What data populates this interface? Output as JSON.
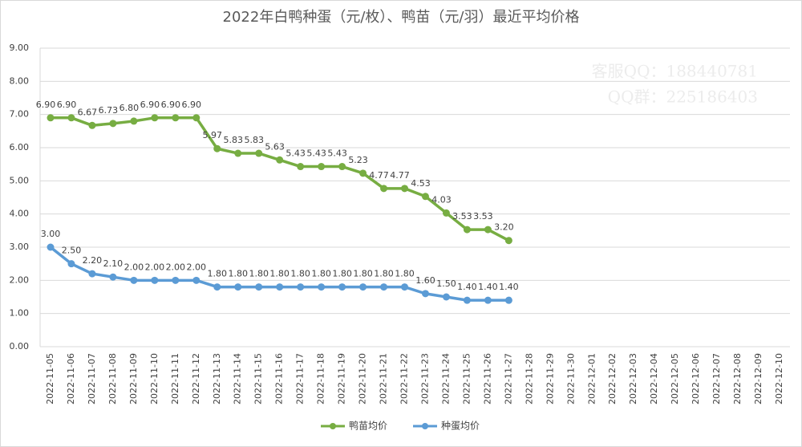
{
  "chart_data": {
    "type": "line",
    "title": "2022年白鸭种蛋（元/枚）、鸭苗（元/羽）最近平均价格",
    "annotations": [
      "客服QQ：188440781",
      "QQ群：225186403"
    ],
    "categories": [
      "2022-11-05",
      "2022-11-06",
      "2022-11-07",
      "2022-11-08",
      "2022-11-09",
      "2022-11-10",
      "2022-11-11",
      "2022-11-12",
      "2022-11-13",
      "2022-11-14",
      "2022-11-15",
      "2022-11-16",
      "2022-11-17",
      "2022-11-18",
      "2022-11-19",
      "2022-11-20",
      "2022-11-21",
      "2022-11-22",
      "2022-11-23",
      "2022-11-24",
      "2022-11-25",
      "2022-11-26",
      "2022-11-27",
      "2022-11-28",
      "2022-11-29",
      "2022-11-30",
      "2022-12-01",
      "2022-12-02",
      "2022-12-03",
      "2022-12-04",
      "2022-12-05",
      "2022-12-06",
      "2022-12-07",
      "2022-12-08",
      "2022-12-09",
      "2022-12-10"
    ],
    "series": [
      {
        "name": "鸭苗均价",
        "color": "#77ad42",
        "values": [
          6.9,
          6.9,
          6.67,
          6.73,
          6.8,
          6.9,
          6.9,
          6.9,
          5.97,
          5.83,
          5.83,
          5.63,
          5.43,
          5.43,
          5.43,
          5.23,
          4.77,
          4.77,
          4.53,
          4.03,
          3.53,
          3.53,
          3.2,
          null,
          null,
          null,
          null,
          null,
          null,
          null,
          null,
          null,
          null,
          null,
          null,
          null
        ],
        "value_labels": [
          "6.90",
          "6.90",
          "6.67",
          "6.73",
          "6.80",
          "6.90",
          "6.90",
          "6.90",
          "5.97",
          "5.83",
          "5.83",
          "5.63",
          "5.43",
          "5.43",
          "5.43",
          "5.23",
          "4.77",
          "4.77",
          "4.53",
          "4.03",
          "3.53",
          "3.53",
          "3.20",
          null,
          null,
          null,
          null,
          null,
          null,
          null,
          null,
          null,
          null,
          null,
          null,
          null
        ]
      },
      {
        "name": "种蛋均价",
        "color": "#5b9bd5",
        "values": [
          3,
          2.5,
          2.2,
          2.1,
          2,
          2,
          2,
          2,
          1.8,
          1.8,
          1.8,
          1.8,
          1.8,
          1.8,
          1.8,
          1.8,
          1.8,
          1.8,
          1.6,
          1.5,
          1.4,
          1.4,
          1.4,
          null,
          null,
          null,
          null,
          null,
          null,
          null,
          null,
          null,
          null,
          null,
          null,
          null
        ],
        "value_labels": [
          "3.00",
          "2.50",
          "2.20",
          "2.10",
          "2.00",
          "2.00",
          "2.00",
          "2.00",
          "1.80",
          "1.80",
          "1.80",
          "1.80",
          "1.80",
          "1.80",
          "1.80",
          "1.80",
          "1.80",
          "1.80",
          "1.60",
          "1.50",
          "1.40",
          "1.40",
          "1.40",
          null,
          null,
          null,
          null,
          null,
          null,
          null,
          null,
          null,
          null,
          null,
          null,
          null
        ]
      }
    ],
    "ylim": [
      0,
      9
    ],
    "yticks": [
      {
        "value": 0,
        "label": "0.00"
      },
      {
        "value": 1,
        "label": "1.00"
      },
      {
        "value": 2,
        "label": "2.00"
      },
      {
        "value": 3,
        "label": "3.00"
      },
      {
        "value": 4,
        "label": "4.00"
      },
      {
        "value": 5,
        "label": "5.00"
      },
      {
        "value": 6,
        "label": "6.00"
      },
      {
        "value": 7,
        "label": "7.00"
      },
      {
        "value": 8,
        "label": "8.00"
      },
      {
        "value": 9,
        "label": "9.00"
      }
    ],
    "grid": true,
    "legend": "bottom"
  }
}
